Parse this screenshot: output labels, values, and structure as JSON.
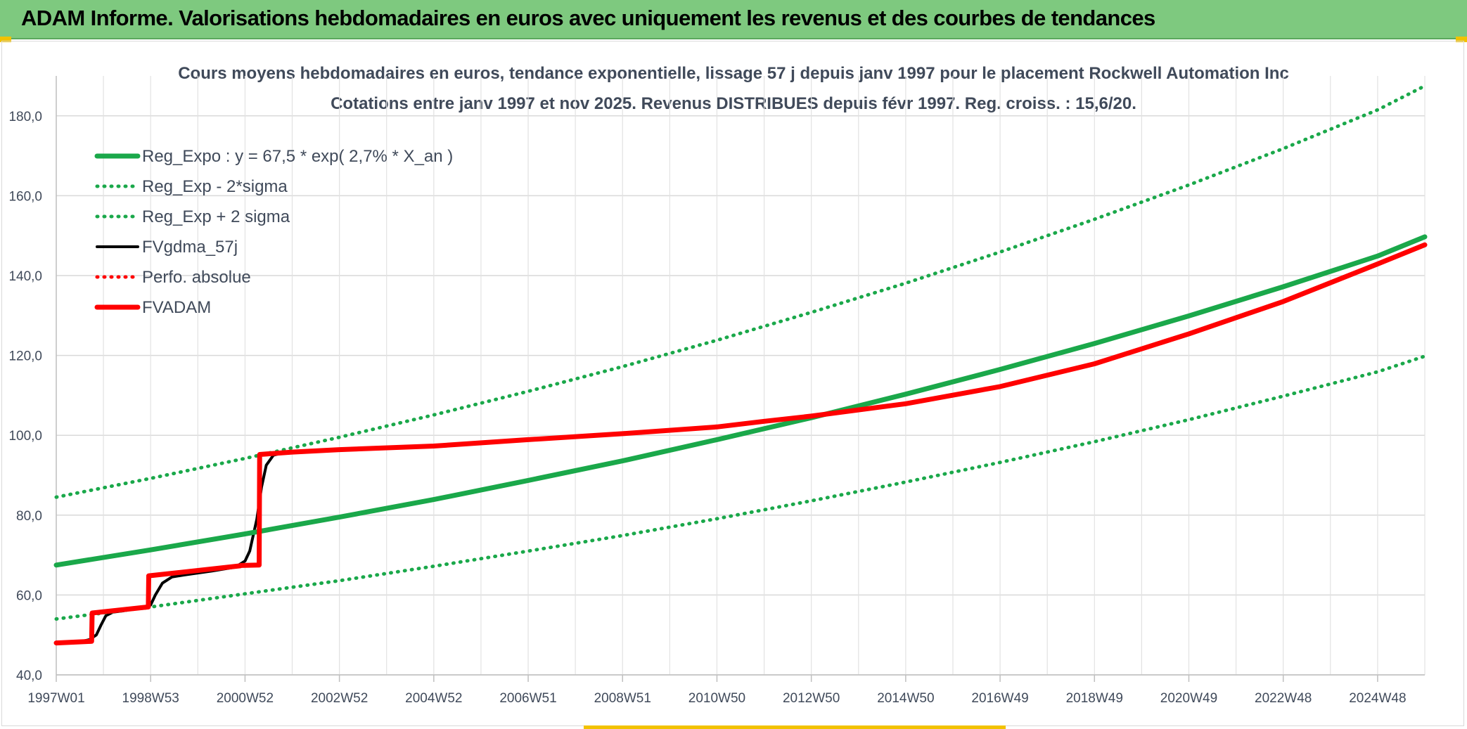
{
  "header": {
    "title": "ADAM Informe. Valorisations hebdomadaires en euros avec uniquement les revenus et des courbes de tendances"
  },
  "colors": {
    "header_bg": "#7ec97f",
    "trend_green": "#1aa84a",
    "fv_black": "#000000",
    "adam_red": "#ff0000",
    "accent_yellow": "#f2c200"
  },
  "chart_data": {
    "type": "line",
    "title": "Cours moyens hebdomadaires en euros, tendance exponentielle, lissage 57 j depuis janv 1997 pour le placement Rockwell Automation Inc",
    "subtitle": "Cotations entre janv 1997 et nov 2025. Revenus DISTRIBUES depuis févr 1997. Reg. croiss. : 15,6/20.",
    "xlabel": "",
    "ylabel": "",
    "x_range": [
      1997.0,
      2026.0
    ],
    "ylim": [
      40,
      190
    ],
    "yticks": [
      "40,0",
      "60,0",
      "80,0",
      "100,0",
      "120,0",
      "140,0",
      "160,0",
      "180,0"
    ],
    "ytick_values": [
      40,
      60,
      80,
      100,
      120,
      140,
      160,
      180
    ],
    "xtick_labels": [
      "1997W01",
      "1998W53",
      "2000W52",
      "2002W52",
      "2004W52",
      "2006W51",
      "2008W51",
      "2010W50",
      "2012W50",
      "2014W50",
      "2016W49",
      "2018W49",
      "2020W49",
      "2022W48",
      "2024W48"
    ],
    "xtick_values": [
      1997.0,
      1999.0,
      2001.0,
      2003.0,
      2005.0,
      2007.0,
      2009.0,
      2011.0,
      2013.0,
      2015.0,
      2017.0,
      2019.0,
      2021.0,
      2023.0,
      2025.0
    ],
    "grid": true,
    "legend_position": "top-left",
    "series": [
      {
        "name": "Reg_Expo : y = 67,5 * exp( 2,7% *  X_an )",
        "style": "solid-thick",
        "color": "#1aa84a",
        "x": [
          1997,
          1999,
          2001,
          2003,
          2005,
          2007,
          2009,
          2011,
          2013,
          2015,
          2017,
          2019,
          2021,
          2023,
          2025,
          2026
        ],
        "values": [
          67.5,
          71.3,
          75.3,
          79.5,
          83.9,
          88.7,
          93.6,
          98.9,
          104.4,
          110.3,
          116.5,
          123.0,
          129.9,
          137.2,
          144.9,
          149.7
        ]
      },
      {
        "name": "Reg_Exp - 2*sigma",
        "style": "dotted",
        "color": "#1aa84a",
        "x": [
          1997,
          1999,
          2001,
          2003,
          2005,
          2007,
          2009,
          2011,
          2013,
          2015,
          2017,
          2019,
          2021,
          2023,
          2025,
          2026
        ],
        "values": [
          54.0,
          57.0,
          60.3,
          63.6,
          67.2,
          71.0,
          74.9,
          79.1,
          83.6,
          88.3,
          93.2,
          98.4,
          103.9,
          109.8,
          115.9,
          119.8
        ]
      },
      {
        "name": "Reg_Exp + 2 sigma",
        "style": "dotted",
        "color": "#1aa84a",
        "x": [
          1997,
          1999,
          2001,
          2003,
          2005,
          2007,
          2009,
          2011,
          2013,
          2015,
          2017,
          2019,
          2021,
          2023,
          2025,
          2026
        ],
        "values": [
          84.5,
          89.2,
          94.2,
          99.5,
          105.1,
          111.0,
          117.2,
          123.8,
          130.8,
          138.1,
          145.9,
          154.1,
          162.7,
          171.8,
          181.5,
          187.5
        ]
      },
      {
        "name": "FVgdma_57j",
        "style": "solid",
        "color": "#000000",
        "x": [
          1997.0,
          1997.5,
          1997.7,
          1997.85,
          1997.95,
          1998.05,
          1998.2,
          1998.4,
          1998.6,
          1998.9,
          1999.0,
          1999.1,
          1999.25,
          1999.45,
          1999.7,
          2000.3,
          2000.8,
          2001.0,
          2001.1,
          2001.25,
          2001.35,
          2001.45,
          2001.6,
          2001.8,
          2002.2,
          2003.0,
          2005.0,
          2007.0,
          2009.0,
          2011.0,
          2012.0,
          2013.0,
          2015.0,
          2017.0,
          2019.0,
          2021.0,
          2023.0,
          2025.0,
          2026.0
        ],
        "values": [
          48.0,
          48.3,
          48.8,
          50.0,
          52.5,
          54.8,
          55.7,
          56.0,
          56.4,
          56.7,
          57.5,
          60.0,
          63.0,
          64.5,
          65.0,
          66.0,
          67.0,
          68.5,
          71.0,
          79.0,
          87.0,
          92.5,
          95.0,
          95.6,
          96.0,
          96.3,
          97.4,
          99.0,
          100.5,
          102.2,
          103.5,
          104.8,
          108.0,
          112.3,
          118.0,
          125.5,
          133.6,
          143.0,
          147.8
        ]
      },
      {
        "name": "Perfo. absolue",
        "style": "dotted",
        "color": "#ff0000",
        "x": [
          1997.0,
          1997.75,
          1997.76,
          1998.95,
          1998.96,
          2000.9,
          2000.91,
          2001.3,
          2001.31,
          2002.0,
          2003.0,
          2005.0,
          2007.0,
          2009.0,
          2011.0,
          2012.0,
          2013.0,
          2015.0,
          2017.0,
          2019.0,
          2021.0,
          2023.0,
          2025.0,
          2026.0
        ],
        "values": [
          48.0,
          48.4,
          55.5,
          57.0,
          64.8,
          67.3,
          67.4,
          67.5,
          95.2,
          95.8,
          96.4,
          97.3,
          98.9,
          100.4,
          102.1,
          103.5,
          104.8,
          107.9,
          112.2,
          117.9,
          125.4,
          133.5,
          142.9,
          147.7
        ]
      },
      {
        "name": "FVADAM",
        "style": "solid-thick",
        "color": "#ff0000",
        "x": [
          1997.0,
          1997.75,
          1997.76,
          1998.95,
          1998.96,
          2000.9,
          2000.91,
          2001.3,
          2001.31,
          2002.0,
          2003.0,
          2005.0,
          2007.0,
          2009.0,
          2011.0,
          2012.0,
          2013.0,
          2015.0,
          2017.0,
          2019.0,
          2021.0,
          2023.0,
          2025.0,
          2026.0
        ],
        "values": [
          48.0,
          48.4,
          55.5,
          57.0,
          64.8,
          67.3,
          67.4,
          67.5,
          95.2,
          95.8,
          96.4,
          97.3,
          98.9,
          100.4,
          102.1,
          103.5,
          104.8,
          107.9,
          112.2,
          117.9,
          125.4,
          133.5,
          142.9,
          147.7
        ]
      }
    ]
  }
}
